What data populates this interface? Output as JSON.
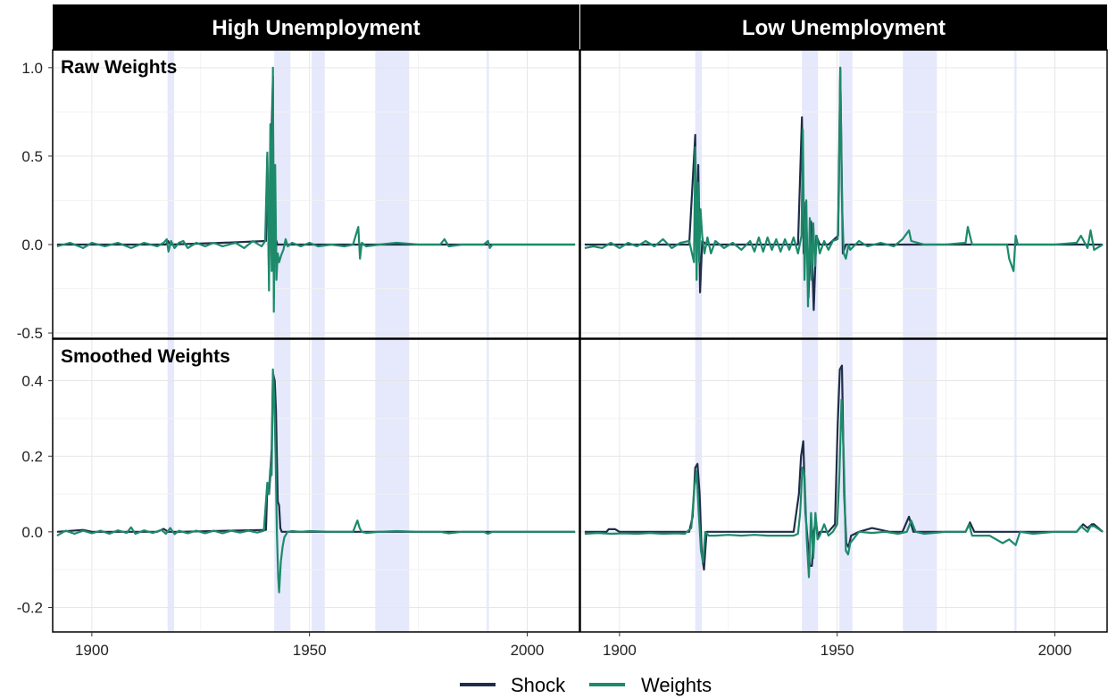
{
  "chart_data": {
    "type": "line",
    "facets": {
      "columns": [
        "High Unemployment",
        "Low Unemployment"
      ],
      "rows": [
        "Raw Weights",
        "Smoothed Weights"
      ]
    },
    "x_ticks": [
      1900,
      1950,
      2000
    ],
    "xlim": [
      1891,
      2012
    ],
    "rows": [
      {
        "ylim": [
          -0.53,
          1.1
        ],
        "y_ticks": [
          -0.5,
          0.0,
          0.5,
          1.0
        ],
        "y_tick_labels": [
          "-0.5",
          "0.0",
          "0.5",
          "1.0"
        ]
      },
      {
        "ylim": [
          -0.265,
          0.51
        ],
        "y_ticks": [
          -0.2,
          0.0,
          0.2,
          0.4
        ],
        "y_tick_labels": [
          "-0.2",
          "0.0",
          "0.2",
          "0.4"
        ]
      }
    ],
    "shaded_periods": [
      [
        1917.4,
        1918.9
      ],
      [
        1941.9,
        1945.6
      ],
      [
        1950.5,
        1953.5
      ],
      [
        1965.1,
        1972.9
      ],
      [
        1990.7,
        1991.2
      ]
    ],
    "shade_color": "#e6e8fb",
    "legend": {
      "position": "bottom",
      "entries": [
        {
          "name": "Shock",
          "color": "#1f2d4a"
        },
        {
          "name": "Weights",
          "color": "#1d8a6a"
        }
      ]
    },
    "panels": [
      {
        "column": "High Unemployment",
        "row": "Raw Weights",
        "series": [
          {
            "name": "Shock",
            "x": [
              1892,
              1917,
              1917.5,
              1918,
              1930,
              1940,
              1940.3,
              1940.7,
              1941,
              1941.3,
              1941.6,
              1941.8,
              1942,
              1942.2,
              1942.4,
              1942.6,
              1943,
              1944,
              1945,
              1960,
              2011
            ],
            "y": [
              0,
              0,
              0.02,
              0,
              0.01,
              0.02,
              0.5,
              -0.2,
              0.55,
              0.65,
              0.95,
              -0.3,
              0.28,
              -0.1,
              0.02,
              0,
              0,
              0,
              0,
              0,
              0
            ]
          },
          {
            "name": "Weights",
            "x": [
              1892,
              1895,
              1898,
              1900,
              1903,
              1906,
              1909,
              1912,
              1915,
              1916.5,
              1917.2,
              1917.6,
              1918.2,
              1919,
              1920,
              1921,
              1922,
              1924,
              1926,
              1928,
              1930,
              1933,
              1935,
              1937,
              1939,
              1939.8,
              1940.3,
              1940.7,
              1941,
              1941.3,
              1941.6,
              1941.8,
              1942.1,
              1942.4,
              1942.7,
              1943,
              1943.5,
              1944,
              1944.5,
              1945,
              1946,
              1948,
              1950,
              1952,
              1955,
              1958,
              1960,
              1961.2,
              1961.6,
              1962,
              1963,
              1966,
              1970,
              1975,
              1980,
              1981,
              1982,
              1985,
              1990,
              1991,
              1991.4,
              1992,
              1995,
              2000,
              2005,
              2011
            ],
            "y": [
              -0.01,
              0.01,
              -0.02,
              0.01,
              -0.01,
              0.01,
              -0.02,
              0.01,
              -0.01,
              0.01,
              0.03,
              -0.04,
              0.02,
              -0.02,
              0.01,
              0.02,
              -0.02,
              0.01,
              -0.01,
              0.01,
              -0.01,
              0.01,
              -0.02,
              0.02,
              -0.01,
              0.02,
              0.52,
              -0.26,
              0.68,
              -0.15,
              1.0,
              -0.38,
              0.45,
              -0.2,
              -0.05,
              -0.1,
              -0.06,
              -0.03,
              0.03,
              -0.01,
              0.01,
              -0.01,
              0.01,
              -0.01,
              0.0,
              -0.01,
              0.0,
              0.1,
              -0.08,
              0.01,
              -0.01,
              0.0,
              0.01,
              0.0,
              0.0,
              0.03,
              -0.01,
              0.0,
              0.0,
              0.02,
              -0.02,
              0.0,
              0.0,
              0.0,
              0.0,
              0.0
            ]
          }
        ]
      },
      {
        "column": "Low Unemployment",
        "row": "Raw Weights",
        "series": [
          {
            "name": "Shock",
            "x": [
              1892,
              1916,
              1917.4,
              1917.7,
              1918.1,
              1918.5,
              1919,
              1920,
              1930,
              1941,
              1941.9,
              1942.3,
              1942.8,
              1943.4,
              1944,
              1944.6,
              1945.2,
              1946,
              1948,
              1950.2,
              1950.7,
              1951.3,
              1952,
              1960,
              2011
            ],
            "y": [
              0,
              0,
              0.62,
              -0.05,
              0.45,
              -0.27,
              0.02,
              0,
              0,
              0,
              0.72,
              -0.05,
              0.24,
              -0.3,
              0.13,
              -0.37,
              0.05,
              0,
              0,
              0.05,
              1.0,
              -0.05,
              0,
              0,
              0
            ]
          },
          {
            "name": "Weights",
            "x": [
              1892,
              1894,
              1896,
              1898,
              1900,
              1902,
              1904,
              1906,
              1908,
              1910,
              1912,
              1914,
              1916,
              1917.1,
              1917.4,
              1917.7,
              1918,
              1918.3,
              1918.6,
              1919,
              1919.5,
              1920.2,
              1921,
              1922,
              1924,
              1926,
              1928,
              1930,
              1931,
              1932,
              1933,
              1934,
              1935,
              1936,
              1937,
              1938,
              1939,
              1940,
              1941,
              1941.8,
              1942.1,
              1942.5,
              1942.9,
              1943.3,
              1943.7,
              1944.1,
              1944.5,
              1944.9,
              1945.3,
              1946,
              1947,
              1948,
              1949,
              1950.1,
              1950.4,
              1950.7,
              1951.1,
              1951.5,
              1952,
              1952.6,
              1953,
              1955,
              1957,
              1960,
              1963,
              1965,
              1966.5,
              1967,
              1970,
              1975,
              1979.5,
              1980,
              1981,
              1985,
              1989,
              1989.5,
              1990.5,
              1991,
              1991.5,
              1995,
              2000,
              2005,
              2006,
              2007.5,
              2008.2,
              2009,
              2011
            ],
            "y": [
              -0.02,
              -0.01,
              -0.02,
              0.01,
              -0.02,
              0.01,
              -0.01,
              0.02,
              -0.01,
              0.03,
              -0.02,
              0.01,
              0.02,
              -0.1,
              0.55,
              -0.2,
              0.35,
              -0.1,
              0.2,
              0.05,
              -0.05,
              0.04,
              -0.05,
              0.02,
              -0.02,
              0.01,
              -0.03,
              0.02,
              -0.04,
              0.04,
              -0.04,
              0.04,
              -0.03,
              0.03,
              -0.04,
              0.03,
              -0.03,
              0.04,
              -0.05,
              0.05,
              0.65,
              -0.2,
              0.25,
              -0.35,
              0.15,
              -0.2,
              0.12,
              -0.12,
              0.05,
              -0.05,
              0.02,
              -0.03,
              0.02,
              0.03,
              0.3,
              1.0,
              0.25,
              -0.05,
              -0.08,
              0.0,
              -0.03,
              0.02,
              -0.01,
              0.01,
              -0.01,
              0.03,
              0.08,
              0.02,
              0.0,
              0.0,
              0.01,
              0.1,
              0.0,
              0.0,
              0.0,
              -0.08,
              -0.15,
              0.05,
              0.0,
              0.0,
              0.0,
              0.01,
              0.05,
              -0.02,
              0.08,
              -0.03,
              0.0
            ]
          }
        ]
      },
      {
        "column": "High Unemployment",
        "row": "Smoothed Weights",
        "series": [
          {
            "name": "Shock",
            "x": [
              1892,
              1898,
              1900,
              1915,
              1916.5,
              1917.5,
              1920,
              1940,
              1940.3,
              1940.7,
              1941,
              1941.3,
              1941.6,
              1942,
              1942.3,
              1942.7,
              1943,
              1943.3,
              1943.6,
              1944,
              1950,
              1960,
              2011
            ],
            "y": [
              0,
              0.005,
              0,
              0,
              0.008,
              0,
              0,
              0.005,
              0.12,
              0.1,
              0.15,
              0.22,
              0.42,
              0.4,
              0.32,
              0.08,
              0.07,
              0.01,
              0,
              0,
              0,
              0,
              0
            ]
          },
          {
            "name": "Weights",
            "x": [
              1892,
              1894,
              1896,
              1898,
              1900,
              1902,
              1904,
              1906,
              1908,
              1909,
              1910,
              1912,
              1914,
              1916,
              1917,
              1918,
              1919,
              1920,
              1922,
              1924,
              1926,
              1928,
              1930,
              1932,
              1934,
              1936,
              1938,
              1939.5,
              1940.3,
              1940.6,
              1941,
              1941.3,
              1941.6,
              1941.9,
              1942.2,
              1942.5,
              1942.8,
              1943,
              1943.4,
              1943.8,
              1944.2,
              1944.7,
              1945,
              1946,
              1948,
              1950,
              1955,
              1960,
              1961,
              1961.5,
              1962,
              1963,
              1966,
              1970,
              1975,
              1980,
              1982,
              1985,
              1990,
              1991,
              1992,
              1995,
              2000,
              2005,
              2011
            ],
            "y": [
              -0.01,
              0.003,
              -0.005,
              0.003,
              -0.004,
              0.003,
              -0.005,
              0.004,
              -0.003,
              0.012,
              -0.005,
              0.004,
              -0.003,
              0.005,
              -0.005,
              0.01,
              -0.006,
              0.003,
              -0.004,
              0.003,
              -0.004,
              0.003,
              -0.004,
              0.003,
              -0.002,
              0.003,
              -0.002,
              0.003,
              0.13,
              0.1,
              0.17,
              0.15,
              0.43,
              0.35,
              0.2,
              0.0,
              -0.12,
              -0.16,
              -0.08,
              -0.04,
              -0.015,
              -0.005,
              0.0,
              0.002,
              0.0,
              0.002,
              0.0,
              0.0,
              0.03,
              0.01,
              0.0,
              -0.003,
              0.0,
              0.002,
              0.0,
              0.0,
              -0.004,
              0.0,
              0.0,
              -0.005,
              0.0,
              0.0,
              0.0,
              0.0,
              0.0
            ]
          }
        ]
      },
      {
        "column": "Low Unemployment",
        "row": "Smoothed Weights",
        "series": [
          {
            "name": "Shock",
            "x": [
              1892,
              1897,
              1897.5,
              1899,
              1900,
              1910,
              1916,
              1916.8,
              1917.4,
              1917.9,
              1918.4,
              1918.9,
              1919.4,
              1920,
              1930,
              1940,
              1941.2,
              1941.7,
              1942.2,
              1942.7,
              1943.2,
              1943.7,
              1944.2,
              1944.6,
              1945.1,
              1945.6,
              1946,
              1948,
              1949.5,
              1950.1,
              1950.6,
              1951.1,
              1951.6,
              1952.1,
              1952.6,
              1953.2,
              1955,
              1958,
              1962,
              1965,
              1966.5,
              1967.5,
              1970,
              1979.5,
              1980.5,
              1981.5,
              1990,
              1991,
              2005,
              2006.5,
              2007.5,
              2008.5,
              2009,
              2011
            ],
            "y": [
              0,
              0,
              0.007,
              0.007,
              0,
              0,
              0,
              0.04,
              0.17,
              0.18,
              0.1,
              -0.06,
              -0.1,
              0,
              0,
              0,
              0.1,
              0.2,
              0.24,
              0.05,
              -0.02,
              -0.09,
              -0.09,
              0.0,
              0.03,
              -0.015,
              0.0,
              0.0,
              0.02,
              0.28,
              0.43,
              0.44,
              0.1,
              -0.03,
              -0.04,
              -0.01,
              0.0,
              0.01,
              0.0,
              0.0,
              0.04,
              0.0,
              0.0,
              0.0,
              0.025,
              0.0,
              0.0,
              0.0,
              0.0,
              0.02,
              0.01,
              0.02,
              0.02,
              0.0
            ]
          },
          {
            "name": "Weights",
            "x": [
              1892,
              1895,
              1898,
              1901,
              1904,
              1907,
              1910,
              1913,
              1915,
              1916.5,
              1917.2,
              1917.7,
              1918.2,
              1918.7,
              1919.2,
              1919.7,
              1920.5,
              1922,
              1925,
              1928,
              1931,
              1934,
              1937,
              1940,
              1941,
              1941.5,
              1942,
              1942.5,
              1943,
              1943.5,
              1944,
              1944.5,
              1945,
              1945.5,
              1946,
              1947,
              1948,
              1949,
              1950,
              1950.5,
              1951,
              1951.5,
              1952,
              1952.5,
              1953,
              1955,
              1958,
              1961,
              1964,
              1966,
              1967,
              1968,
              1970,
              1975,
              1979.5,
              1980.3,
              1981,
              1985,
              1988,
              1989.5,
              1991,
              1992,
              1995,
              2000,
              2005,
              2006,
              2007.5,
              2008.2,
              2009,
              2011
            ],
            "y": [
              -0.005,
              -0.003,
              -0.005,
              -0.004,
              -0.005,
              -0.003,
              -0.005,
              -0.004,
              -0.005,
              0.01,
              0.12,
              0.16,
              0.05,
              -0.05,
              -0.08,
              0.0,
              -0.01,
              -0.01,
              -0.008,
              -0.01,
              -0.008,
              -0.01,
              -0.01,
              -0.01,
              -0.005,
              0.05,
              0.17,
              0.15,
              -0.02,
              -0.12,
              0.05,
              -0.07,
              0.05,
              -0.02,
              -0.01,
              0.02,
              -0.01,
              0.0,
              0.02,
              0.15,
              0.35,
              0.2,
              -0.05,
              -0.06,
              -0.03,
              0.0,
              -0.003,
              0.0,
              -0.005,
              0.0,
              0.03,
              0.0,
              -0.005,
              0.0,
              0.0,
              0.02,
              -0.01,
              -0.01,
              -0.03,
              -0.02,
              -0.035,
              0.0,
              -0.005,
              0.0,
              0.0,
              0.015,
              0.0,
              0.015,
              0.015,
              0.0
            ]
          }
        ]
      }
    ]
  }
}
